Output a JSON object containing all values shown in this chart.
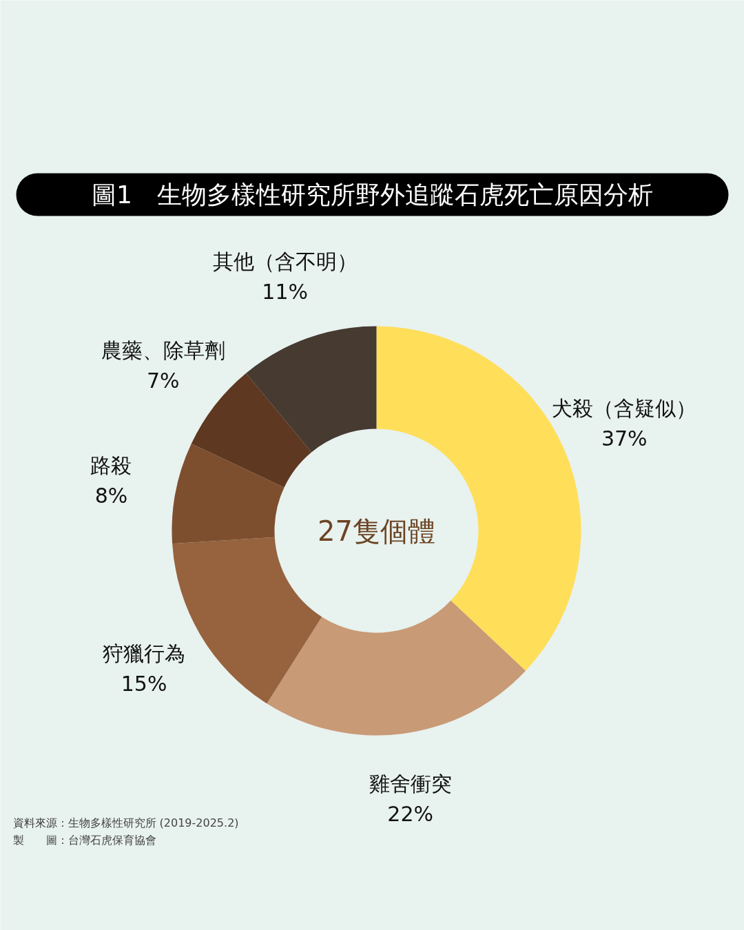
{
  "chart_data": {
    "type": "donut",
    "title": "圖1　生物多樣性研究所野外追蹤石虎死亡原因分析",
    "categories": [
      "犬殺（含疑似）",
      "雞舍衝突",
      "狩獵行為",
      "路殺",
      "農藥、除草劑",
      "其他（含不明）"
    ],
    "values": [
      37,
      22,
      15,
      8,
      7,
      11
    ],
    "colors": [
      "#ffde5a",
      "#c89a76",
      "#96633e",
      "#7e4f2f",
      "#5e3820",
      "#463a31"
    ],
    "value_labels": [
      "37%",
      "22%",
      "15%",
      "8%",
      "7%",
      "11%"
    ],
    "annotations": [
      "27隻個體",
      "資料來源：生物多樣性研究所 (2019-2025.2)",
      "製　　圖：台灣石虎保育協會"
    ]
  }
}
